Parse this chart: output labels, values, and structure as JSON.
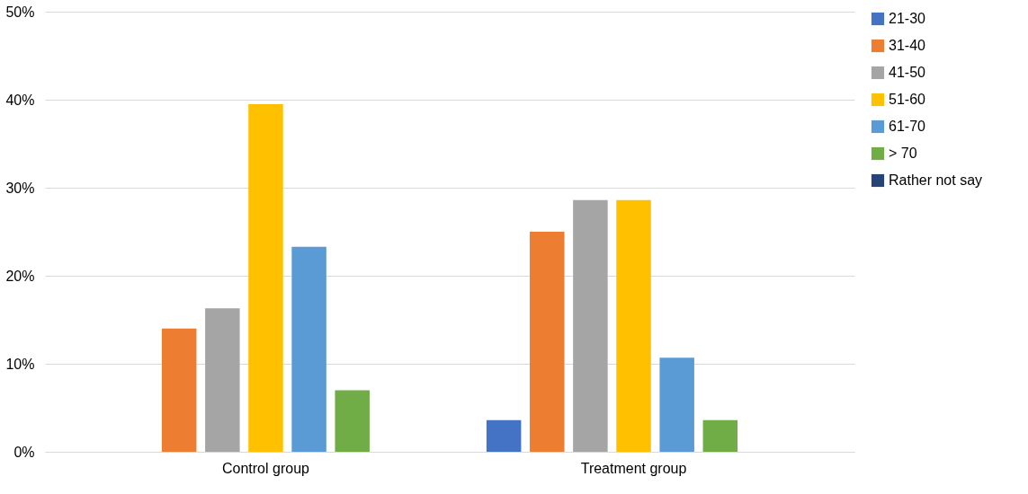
{
  "chart_data": {
    "type": "bar",
    "categories": [
      "Control group",
      "Treatment group"
    ],
    "series": [
      {
        "name": "21-30",
        "color": "#4472c4",
        "values": [
          0,
          3.6
        ]
      },
      {
        "name": "31-40",
        "color": "#ed7d31",
        "values": [
          14.0,
          25.0
        ]
      },
      {
        "name": "41-50",
        "color": "#a5a5a5",
        "values": [
          16.3,
          28.6
        ]
      },
      {
        "name": "51-60",
        "color": "#ffc000",
        "values": [
          39.5,
          28.6
        ]
      },
      {
        "name": "61-70",
        "color": "#5b9bd5",
        "values": [
          23.3,
          10.7
        ]
      },
      {
        "name": "> 70",
        "color": "#70ad47",
        "values": [
          7.0,
          3.6
        ]
      },
      {
        "name": "Rather not say",
        "color": "#264478",
        "values": [
          0,
          0
        ]
      }
    ],
    "ylim": [
      0,
      50
    ],
    "yticks": [
      {
        "value": 0,
        "label": "0%"
      },
      {
        "value": 10,
        "label": "10%"
      },
      {
        "value": 20,
        "label": "20%"
      },
      {
        "value": 30,
        "label": "30%"
      },
      {
        "value": 40,
        "label": "40%"
      },
      {
        "value": 50,
        "label": "50%"
      }
    ],
    "grid": "y",
    "legend": "right"
  }
}
